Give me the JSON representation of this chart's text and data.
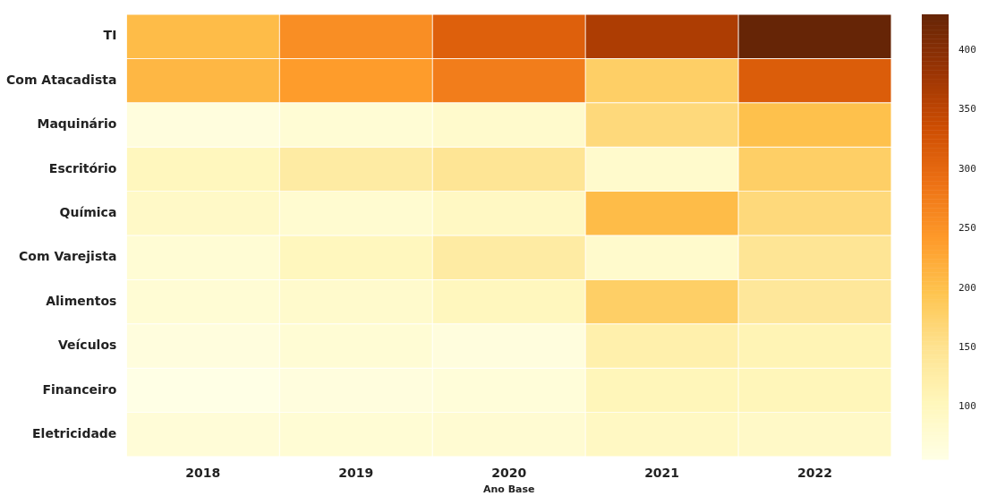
{
  "chart_data": {
    "type": "heatmap",
    "xlabel": "Ano Base",
    "categories": [
      "2018",
      "2019",
      "2020",
      "2021",
      "2022"
    ],
    "y_categories": [
      "TI",
      "Com Atacadista",
      "Maquinário",
      "Escritório",
      "Química",
      "Com Varejista",
      "Alimentos",
      "Veículos",
      "Financeiro",
      "Eletricidade"
    ],
    "cells": [
      [
        205,
        255,
        310,
        365,
        430
      ],
      [
        210,
        240,
        275,
        180,
        315
      ],
      [
        65,
        75,
        85,
        165,
        200
      ],
      [
        100,
        130,
        145,
        85,
        180
      ],
      [
        90,
        80,
        95,
        205,
        165
      ],
      [
        75,
        100,
        130,
        85,
        145
      ],
      [
        75,
        85,
        100,
        180,
        140
      ],
      [
        65,
        75,
        65,
        120,
        110
      ],
      [
        56,
        65,
        70,
        105,
        105
      ],
      [
        72,
        75,
        78,
        95,
        90
      ]
    ],
    "clim": [
      56,
      430
    ],
    "cticks": [
      100,
      150,
      200,
      250,
      300,
      350,
      400
    ]
  }
}
